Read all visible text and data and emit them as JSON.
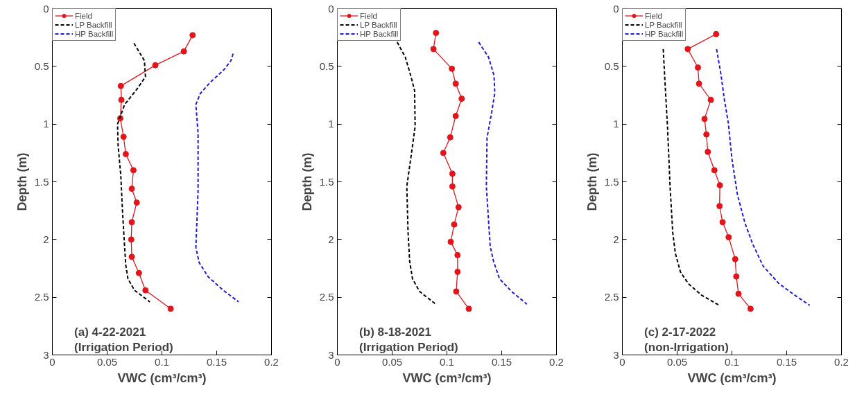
{
  "chart_data": [
    {
      "type": "line",
      "xlabel": "VWC (cm³/cm³)",
      "ylabel": "Depth (m)",
      "annotations": [
        "(a) 4-22-2021\n(Irrigation Period)"
      ],
      "xlim": [
        0,
        0.2
      ],
      "xticks": [
        0,
        0.05,
        0.1,
        0.15,
        0.2
      ],
      "ylim": [
        3,
        0
      ],
      "yticks": [
        0,
        0.5,
        1,
        1.5,
        2,
        2.5,
        3
      ],
      "grid": false,
      "legend": "top left",
      "series": [
        {
          "name": "Field",
          "color": "#e4141b",
          "marker": "circle",
          "line_style": "solid",
          "x": [
            0.128,
            0.12,
            0.094,
            0.0625,
            0.063,
            0.062,
            0.065,
            0.067,
            0.074,
            0.0725,
            0.077,
            0.0725,
            0.072,
            0.0725,
            0.079,
            0.085,
            0.108
          ],
          "values": [
            0.23,
            0.37,
            0.49,
            0.67,
            0.79,
            0.95,
            1.11,
            1.26,
            1.4,
            1.56,
            1.68,
            1.85,
            2.0,
            2.15,
            2.29,
            2.44,
            2.6
          ]
        },
        {
          "name": "LP Backfill",
          "color": "#000000",
          "marker": "none",
          "line_style": "dashed",
          "x": [
            0.0745,
            0.084,
            0.085,
            0.077,
            0.066,
            0.0595,
            0.06,
            0.0625,
            0.064,
            0.066,
            0.067,
            0.069,
            0.075,
            0.089
          ],
          "values": [
            0.3,
            0.45,
            0.59,
            0.7,
            0.83,
            1.0,
            1.18,
            1.45,
            1.75,
            2.07,
            2.22,
            2.34,
            2.44,
            2.54
          ]
        },
        {
          "name": "HP Backfill",
          "color": "#1c1cd8",
          "marker": "none",
          "line_style": "dashed",
          "x": [
            0.165,
            0.163,
            0.157,
            0.144,
            0.135,
            0.131,
            0.133,
            0.133,
            0.131,
            0.134,
            0.142,
            0.156,
            0.17
          ],
          "values": [
            0.39,
            0.45,
            0.525,
            0.64,
            0.735,
            0.83,
            1.08,
            1.58,
            2.07,
            2.2,
            2.32,
            2.44,
            2.54
          ]
        }
      ]
    },
    {
      "type": "line",
      "xlabel": "VWC (cm³/cm³)",
      "ylabel": "Depth (m)",
      "annotations": [
        "(b) 8-18-2021\n(Irrigation Period)"
      ],
      "xlim": [
        0,
        0.2
      ],
      "xticks": [
        0,
        0.05,
        0.1,
        0.15,
        0.2
      ],
      "ylim": [
        3,
        0
      ],
      "yticks": [
        0,
        0.5,
        1,
        1.5,
        2,
        2.5,
        3
      ],
      "grid": false,
      "legend": "top left",
      "series": [
        {
          "name": "Field",
          "color": "#e4141b",
          "marker": "circle",
          "line_style": "solid",
          "x": [
            0.09,
            0.0877,
            0.1045,
            0.108,
            0.1135,
            0.108,
            0.103,
            0.0967,
            0.105,
            0.105,
            0.1106,
            0.1066,
            0.1035,
            0.1097,
            0.1097,
            0.1085,
            0.12
          ],
          "values": [
            0.21,
            0.35,
            0.52,
            0.65,
            0.78,
            0.93,
            1.115,
            1.25,
            1.43,
            1.54,
            1.72,
            1.87,
            2.02,
            2.135,
            2.28,
            2.45,
            2.6
          ]
        },
        {
          "name": "LP Backfill",
          "color": "#000000",
          "marker": "none",
          "line_style": "dashed",
          "x": [
            0.0546,
            0.062,
            0.067,
            0.0705,
            0.071,
            0.068,
            0.0634,
            0.0645,
            0.066,
            0.0686,
            0.075,
            0.0898
          ],
          "values": [
            0.29,
            0.42,
            0.58,
            0.71,
            1.02,
            1.23,
            1.54,
            1.93,
            2.19,
            2.34,
            2.45,
            2.56
          ]
        },
        {
          "name": "HP Backfill",
          "color": "#1c1cd8",
          "marker": "none",
          "line_style": "dashed",
          "x": [
            0.129,
            0.138,
            0.143,
            0.1437,
            0.141,
            0.1366,
            0.136,
            0.1395,
            0.1426,
            0.148,
            0.159,
            0.173
          ],
          "values": [
            0.29,
            0.42,
            0.58,
            0.73,
            0.89,
            1.12,
            1.54,
            2.06,
            2.19,
            2.34,
            2.45,
            2.56
          ]
        }
      ]
    },
    {
      "type": "line",
      "xlabel": "VWC (cm³/cm³)",
      "ylabel": "Depth (m)",
      "annotations": [
        "(c) 2-17-2022\n(non-Irrigation)"
      ],
      "xlim": [
        0,
        0.2
      ],
      "xticks": [
        0,
        0.05,
        0.1,
        0.15,
        0.2
      ],
      "ylim": [
        3,
        0
      ],
      "yticks": [
        0,
        0.5,
        1,
        1.5,
        2,
        2.5,
        3
      ],
      "grid": false,
      "legend": "top left",
      "series": [
        {
          "name": "Field",
          "color": "#e4141b",
          "marker": "circle",
          "line_style": "solid",
          "x": [
            0.0856,
            0.0597,
            0.069,
            0.07,
            0.0807,
            0.075,
            0.0767,
            0.078,
            0.084,
            0.089,
            0.0887,
            0.0915,
            0.097,
            0.103,
            0.104,
            0.106,
            0.117
          ],
          "values": [
            0.22,
            0.35,
            0.51,
            0.65,
            0.79,
            0.955,
            1.09,
            1.24,
            1.4,
            1.53,
            1.71,
            1.85,
            1.98,
            2.17,
            2.32,
            2.47,
            2.6
          ]
        },
        {
          "name": "LP Backfill",
          "color": "#000000",
          "marker": "none",
          "line_style": "dashed",
          "x": [
            0.0373,
            0.039,
            0.0413,
            0.0436,
            0.046,
            0.0484,
            0.053,
            0.06,
            0.072,
            0.0884
          ],
          "values": [
            0.35,
            0.65,
            1.04,
            1.55,
            1.94,
            2.12,
            2.28,
            2.38,
            2.48,
            2.57
          ]
        },
        {
          "name": "HP Backfill",
          "color": "#1c1cd8",
          "marker": "none",
          "line_style": "dashed",
          "x": [
            0.086,
            0.09,
            0.093,
            0.0967,
            0.1,
            0.105,
            0.112,
            0.119,
            0.1285,
            0.1427,
            0.157,
            0.171
          ],
          "values": [
            0.35,
            0.57,
            0.78,
            0.99,
            1.3,
            1.61,
            1.86,
            2.04,
            2.23,
            2.38,
            2.48,
            2.57
          ]
        }
      ]
    }
  ]
}
